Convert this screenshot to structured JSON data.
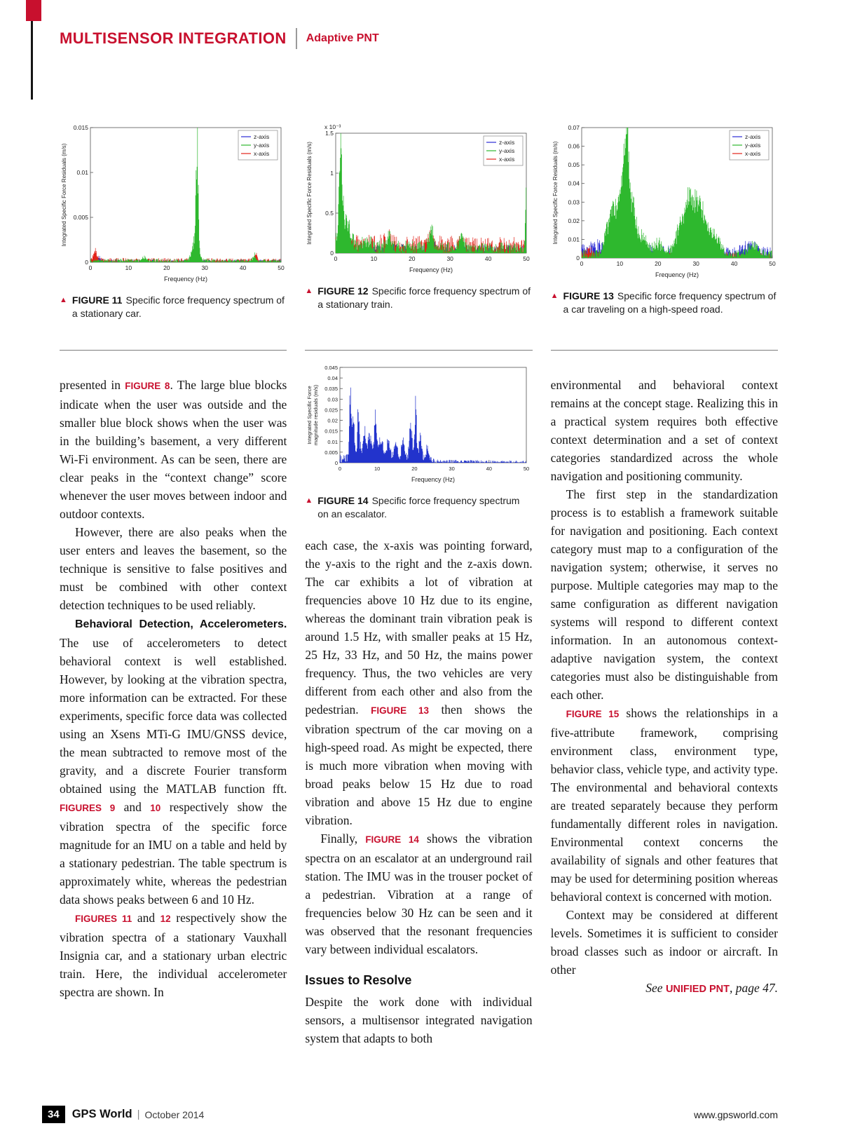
{
  "header": {
    "section": "MULTISENSOR INTEGRATION",
    "subsection": "Adaptive PNT"
  },
  "footer": {
    "page_number": "34",
    "magazine": "GPS World",
    "separator": "|",
    "issue": "October 2014",
    "website": "www.gpsworld.com"
  },
  "colors": {
    "accent_red": "#c8102e",
    "series_z": "#2a2ad4",
    "series_y": "#2eb82e",
    "series_x": "#e2231a",
    "escalator_blue": "#2233cc"
  },
  "chart_data": [
    {
      "id": "figure-11",
      "type": "line",
      "caption_label": "FIGURE 11",
      "caption": "Specific force frequency spectrum of a stationary car.",
      "xlabel": "Frequency (Hz)",
      "ylabel": "Integrated Specific Force Residuals (m/s)",
      "xlim": [
        0,
        50
      ],
      "xticks": [
        0,
        10,
        20,
        30,
        40,
        50
      ],
      "xtick_labels": [
        "0",
        "10",
        "20",
        "30",
        "40",
        "50"
      ],
      "ylim": [
        0,
        0.015
      ],
      "yticks": [
        0,
        0.005,
        0.01,
        0.015
      ],
      "ytick_labels": [
        "0",
        "0.005",
        "0.01",
        "0.015"
      ],
      "legend": [
        "z-axis",
        "y-axis",
        "x-axis"
      ],
      "series": [
        {
          "name": "z-axis",
          "color": "#2a2ad4",
          "noise": [
            [
              0,
              0.00035
            ],
            [
              50,
              0.0003
            ]
          ],
          "peaks": [
            [
              28,
              0.0025,
              0.3
            ],
            [
              2,
              0.0007,
              0.6
            ]
          ]
        },
        {
          "name": "x-axis",
          "color": "#e2231a",
          "noise": [
            [
              0,
              0.0005
            ],
            [
              50,
              0.0004
            ]
          ],
          "peaks": [
            [
              1.2,
              0.0012,
              0.5
            ],
            [
              28,
              0.0012,
              0.3
            ],
            [
              43.5,
              0.001,
              0.3
            ]
          ]
        },
        {
          "name": "y-axis",
          "color": "#2eb82e",
          "noise": [
            [
              0,
              0.0004
            ],
            [
              50,
              0.00035
            ]
          ],
          "peaks": [
            [
              28,
              0.014,
              0.28
            ],
            [
              27.5,
              0.003,
              0.8
            ],
            [
              43,
              0.0008,
              0.4
            ],
            [
              14,
              0.0005,
              0.5
            ]
          ]
        }
      ]
    },
    {
      "id": "figure-12",
      "type": "line",
      "caption_label": "FIGURE 12",
      "caption": "Specific force frequency spectrum of a stationary train.",
      "xlabel": "Frequency (Hz)",
      "ylabel": "Integrated Specific Force Residuals (m/s)",
      "y_multiplier": "x 10⁻³",
      "xlim": [
        0,
        50
      ],
      "xticks": [
        0,
        10,
        20,
        30,
        40,
        50
      ],
      "xtick_labels": [
        "0",
        "10",
        "20",
        "30",
        "40",
        "50"
      ],
      "ylim": [
        0,
        1.5
      ],
      "yticks": [
        0,
        0.5,
        1,
        1.5
      ],
      "ytick_labels": [
        "0",
        "0.5",
        "1",
        "1.5"
      ],
      "legend": [
        "z-axis",
        "y-axis",
        "x-axis"
      ],
      "series": [
        {
          "name": "z-axis",
          "color": "#2a2ad4",
          "noise": [
            [
              0,
              0.12
            ],
            [
              50,
              0.1
            ]
          ],
          "peaks": [
            [
              1.6,
              0.5,
              0.5
            ],
            [
              50,
              0.4,
              0.3
            ],
            [
              25,
              0.12,
              0.8
            ]
          ]
        },
        {
          "name": "x-axis",
          "color": "#e2231a",
          "noise": [
            [
              0,
              0.24
            ],
            [
              50,
              0.2
            ]
          ],
          "peaks": [
            [
              1.5,
              0.1,
              1
            ],
            [
              14,
              0.08,
              0.8
            ],
            [
              25,
              0.1,
              1
            ]
          ]
        },
        {
          "name": "y-axis",
          "color": "#2eb82e",
          "noise": [
            [
              0,
              0.18
            ],
            [
              50,
              0.13
            ]
          ],
          "peaks": [
            [
              1.3,
              1.35,
              0.4
            ],
            [
              2.5,
              0.45,
              1.2
            ],
            [
              8,
              0.12,
              1
            ],
            [
              14,
              0.2,
              0.5
            ],
            [
              25,
              0.26,
              0.6
            ],
            [
              33,
              0.18,
              0.5
            ],
            [
              50,
              0.85,
              0.25
            ]
          ]
        }
      ]
    },
    {
      "id": "figure-13",
      "type": "line",
      "caption_label": "FIGURE 13",
      "caption": "Specific force frequency spectrum of a car traveling on a high-speed road.",
      "xlabel": "Frequency (Hz)",
      "ylabel": "Integrated Specific Force Residuals (m/s)",
      "xlim": [
        0,
        50
      ],
      "xticks": [
        0,
        10,
        20,
        30,
        40,
        50
      ],
      "xtick_labels": [
        "0",
        "10",
        "20",
        "30",
        "40",
        "50"
      ],
      "ylim": [
        0,
        0.07
      ],
      "yticks": [
        0,
        0.01,
        0.02,
        0.03,
        0.04,
        0.05,
        0.06,
        0.07
      ],
      "ytick_labels": [
        "0",
        "0.01",
        "0.02",
        "0.03",
        "0.04",
        "0.05",
        "0.06",
        "0.07"
      ],
      "legend": [
        "z-axis",
        "y-axis",
        "x-axis"
      ],
      "series": [
        {
          "name": "z-axis",
          "color": "#2a2ad4",
          "noise": [
            [
              0,
              0.008
            ],
            [
              50,
              0.006
            ]
          ],
          "peaks": [
            [
              5,
              0.004,
              2
            ],
            [
              12,
              0.005,
              2
            ],
            [
              30,
              0.004,
              3
            ],
            [
              44,
              0.005,
              2
            ]
          ]
        },
        {
          "name": "x-axis",
          "color": "#e2231a",
          "noise": [
            [
              0,
              0.004
            ],
            [
              50,
              0.003
            ]
          ],
          "peaks": [
            [
              2,
              0.003,
              1
            ]
          ]
        },
        {
          "name": "y-axis",
          "color": "#2eb82e",
          "noise": [
            [
              0,
              0.005
            ],
            [
              50,
              0.004
            ]
          ],
          "peaks": [
            [
              7,
              0.018,
              1
            ],
            [
              9,
              0.032,
              1
            ],
            [
              11,
              0.05,
              0.7
            ],
            [
              12,
              0.058,
              0.5
            ],
            [
              13.5,
              0.033,
              0.8
            ],
            [
              16,
              0.012,
              1
            ],
            [
              20,
              0.007,
              1.5
            ],
            [
              26,
              0.017,
              1.4
            ],
            [
              28,
              0.025,
              1.1
            ],
            [
              30,
              0.027,
              1.1
            ],
            [
              32,
              0.02,
              1.4
            ],
            [
              35,
              0.011,
              1.4
            ],
            [
              45,
              0.006,
              1.5
            ]
          ]
        }
      ]
    },
    {
      "id": "figure-14",
      "type": "line",
      "caption_label": "FIGURE 14",
      "caption": "Specific force frequency spectrum on an escalator.",
      "xlabel": "Frequency (Hz)",
      "ylabel": [
        "Integrated Specific Force",
        "magnitude residuals (m/s)"
      ],
      "margin_left": 50,
      "tick_fs": 7.5,
      "xlim": [
        0,
        50
      ],
      "xticks": [
        0,
        10,
        20,
        30,
        40,
        50
      ],
      "xtick_labels": [
        "0",
        "10",
        "20",
        "30",
        "40",
        "50"
      ],
      "ylim": [
        0,
        0.045
      ],
      "yticks": [
        0,
        0.005,
        0.01,
        0.015,
        0.02,
        0.025,
        0.03,
        0.035,
        0.04,
        0.045
      ],
      "ytick_labels": [
        "0",
        "0.005",
        "0.01",
        "0.015",
        "0.02",
        "0.025",
        "0.03",
        "0.035",
        "0.04",
        "0.045"
      ],
      "legend": [],
      "series": [
        {
          "name": "magnitude",
          "color": "#2233cc",
          "noise": [
            [
              0,
              0.004
            ],
            [
              22,
              0.004
            ],
            [
              26,
              0.0015
            ],
            [
              50,
              0.001
            ]
          ],
          "peaks": [
            [
              2.8,
              0.039,
              0.25
            ],
            [
              3.6,
              0.024,
              0.3
            ],
            [
              5,
              0.027,
              0.3
            ],
            [
              6.5,
              0.017,
              0.4
            ],
            [
              8,
              0.015,
              0.5
            ],
            [
              9.5,
              0.023,
              0.35
            ],
            [
              11,
              0.013,
              0.5
            ],
            [
              13,
              0.011,
              0.5
            ],
            [
              15,
              0.009,
              0.5
            ],
            [
              17,
              0.012,
              0.4
            ],
            [
              19,
              0.02,
              0.35
            ],
            [
              20.3,
              0.034,
              0.25
            ],
            [
              21.5,
              0.012,
              0.4
            ],
            [
              23.5,
              0.007,
              0.4
            ]
          ]
        }
      ]
    }
  ],
  "article": {
    "columns": [
      {
        "blocks": [
          {
            "type": "p",
            "indent": false,
            "seg": [
              {
                "t": "presented in "
              },
              {
                "t": "FIGURE 8",
                "s": "ref"
              },
              {
                "t": ". The large blue blocks indicate when the user was outside and the smaller blue block shows when the user was in the building’s basement, a very different Wi-Fi environment. As can be seen, there are clear peaks in the “context change” score whenever the user moves between indoor and outdoor contexts."
              }
            ]
          },
          {
            "type": "p",
            "indent": true,
            "seg": [
              {
                "t": "However, there are also peaks when the user enters and leaves the basement, so the technique is sensitive to false positives and must be combined with other context detection techniques to be used reliably."
              }
            ]
          },
          {
            "type": "p",
            "indent": true,
            "seg": [
              {
                "t": "Behavioral Detection, Accelerometers.",
                "s": "h"
              },
              {
                "t": " The use of accelerometers to detect behavioral context is well established. However, by looking at the vibration spectra, more information can be extracted. For these experiments, specific force data was collected using an Xsens MTi-G IMU/GNSS device, the mean subtracted to remove most of the gravity, and a discrete Fourier transform obtained using the MATLAB function fft. "
              },
              {
                "t": "FIGURES 9",
                "s": "ref"
              },
              {
                "t": " and "
              },
              {
                "t": "10",
                "s": "ref"
              },
              {
                "t": " respectively show the vibration spectra of the specific force magnitude for an IMU on a table and held by a stationary pedestrian. The table spectrum is approximately white, whereas the pedestrian data shows peaks between 6 and 10 Hz."
              }
            ]
          },
          {
            "type": "p",
            "indent": true,
            "seg": [
              {
                "t": "FIGURES 11",
                "s": "ref"
              },
              {
                "t": " and "
              },
              {
                "t": "12",
                "s": "ref"
              },
              {
                "t": " respectively show the vibration spectra of a stationary Vauxhall Insignia car, and a stationary urban electric train. Here, the individual accelerometer spectra are shown. In"
              }
            ]
          }
        ]
      },
      {
        "blocks": [
          {
            "type": "p",
            "indent": false,
            "seg": [
              {
                "t": "each case, the x-axis was pointing forward, the y-axis to the right and the z-axis down. The car exhibits a lot of vibration at frequencies above 10 Hz due to its engine, whereas the dominant train vibration peak is around 1.5 Hz, with smaller peaks at 15 Hz, 25 Hz, 33 Hz, and 50 Hz, the mains power frequency. Thus, the two vehicles are very different from each other and also from the pedestrian. "
              },
              {
                "t": "FIGURE 13",
                "s": "ref"
              },
              {
                "t": " then shows the vibration spectrum of the car moving on a high-speed road. As might be expected, there is much more vibration when moving with broad peaks below 15 Hz due to road vibration and above 15 Hz due to engine vibration."
              }
            ]
          },
          {
            "type": "p",
            "indent": true,
            "seg": [
              {
                "t": "Finally, "
              },
              {
                "t": "FIGURE 14",
                "s": "ref"
              },
              {
                "t": " shows the vibration spectra on an escalator at an underground rail station. The IMU was in the trouser pocket of a pedestrian. Vibration at a range of frequencies below 30 Hz can be seen and it was observed that the resonant frequencies vary between individual escalators."
              }
            ]
          },
          {
            "type": "h2",
            "text": "Issues to Resolve"
          },
          {
            "type": "p",
            "indent": false,
            "seg": [
              {
                "t": "Despite the work done with individual sensors, a multisensor integrated navigation system that adapts to both"
              }
            ]
          }
        ]
      },
      {
        "blocks": [
          {
            "type": "p",
            "indent": false,
            "seg": [
              {
                "t": "environmental and behavioral context remains at the concept stage. Realizing this in a practical system requires both effective context determination and a set of context categories standardized across the whole navigation and positioning community."
              }
            ]
          },
          {
            "type": "p",
            "indent": true,
            "seg": [
              {
                "t": "The first step in the standardization process is to establish a framework suitable for navigation and positioning. Each context category must map to a configuration of the navigation system; otherwise, it serves no purpose. Multiple categories may map to the same configuration as different navigation systems will respond to different context information. In an autonomous context-adaptive navigation system, the context categories must also be distinguishable from each other."
              }
            ]
          },
          {
            "type": "p",
            "indent": true,
            "seg": [
              {
                "t": "FIGURE 15",
                "s": "ref"
              },
              {
                "t": " shows the relationships in a five-attribute framework, comprising environment class, environment type, behavior class, vehicle type, and activity type. The environmental and behavioral contexts are treated separately because they perform fundamentally different roles in navigation. Environmental context concerns the availability of signals and other features that may be used for determining position whereas behavioral context is concerned with motion."
              }
            ]
          },
          {
            "type": "p",
            "indent": true,
            "seg": [
              {
                "t": "Context may be considered at different levels. Sometimes it is sufficient to consider broad classes such as indoor or aircraft. In other"
              }
            ]
          },
          {
            "type": "see",
            "seg": [
              {
                "t": "See ",
                "s": "i"
              },
              {
                "t": "UNIFIED PNT",
                "s": "ref"
              },
              {
                "t": ", page 47.",
                "s": "i"
              }
            ]
          }
        ]
      }
    ]
  }
}
